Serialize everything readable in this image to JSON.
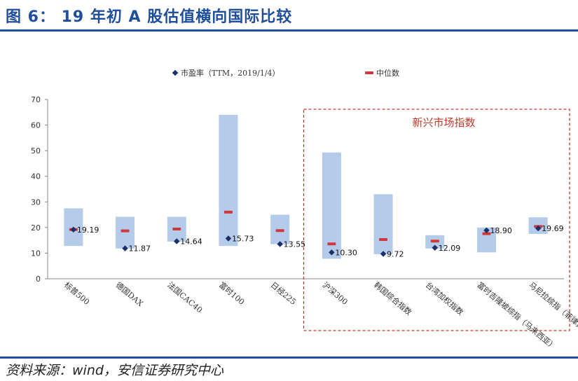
{
  "title": "图 6：  19 年初 A 股估值横向国际比较",
  "source": "资料来源：wind，安信证券研究中心",
  "chart_data": {
    "type": "range-bar",
    "y_ticks": [
      "0",
      "10",
      "20",
      "30",
      "40",
      "50",
      "60",
      "70"
    ],
    "ylim": [
      0,
      70
    ],
    "legend": {
      "pe_label": "市盈率（TTM，2019/1/4）",
      "median_label": "中位数"
    },
    "annotation": "新兴市场指数",
    "categories": [
      "标普500",
      "德国DAX",
      "法国CAC40",
      "富时100",
      "日经225",
      "沪深300",
      "韩国综合指数",
      "台湾加权指数",
      "富时吉隆坡综指（马来西亚）",
      "马尼拉综指（菲律宾）"
    ],
    "range_low": [
      12.8,
      11.8,
      14.5,
      12.8,
      13.5,
      7.8,
      9.6,
      11.8,
      10.3,
      17.5
    ],
    "range_high": [
      27.5,
      24.2,
      24.2,
      64.0,
      25.0,
      49.3,
      33.0,
      17.0,
      20.0,
      24.0
    ],
    "median": [
      19.2,
      18.7,
      19.4,
      26.0,
      18.8,
      13.6,
      15.3,
      14.7,
      17.6,
      20.4
    ],
    "pe": [
      19.19,
      11.87,
      14.64,
      15.73,
      13.55,
      10.3,
      9.72,
      12.09,
      18.9,
      19.69
    ],
    "pe_labels": [
      "19.19",
      "11.87",
      "14.64",
      "15.73",
      "13.55",
      "10.30",
      "9.72",
      "12.09",
      "18.90",
      "19.69"
    ],
    "colors": {
      "range": "#b4cbe9",
      "median": "#d0393b",
      "pe": "#1b2f6b",
      "annotation_box": "#c0392b"
    }
  }
}
